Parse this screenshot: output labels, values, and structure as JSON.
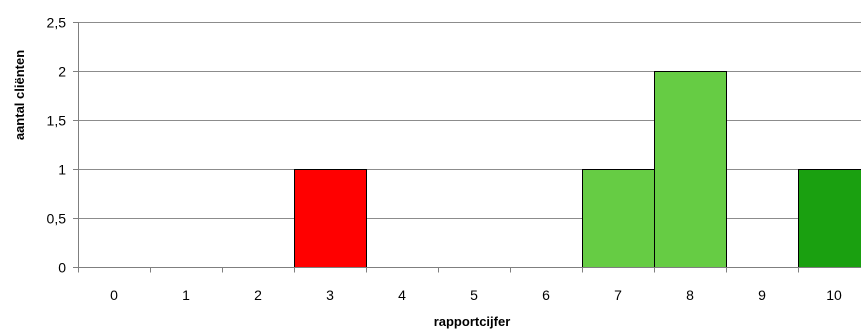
{
  "chart_data": {
    "type": "bar",
    "title": "",
    "xlabel": "rapportcijfer",
    "ylabel": "aantal cliënten",
    "categories": [
      "0",
      "1",
      "2",
      "3",
      "4",
      "5",
      "6",
      "7",
      "8",
      "9",
      "10"
    ],
    "values": [
      0,
      0,
      0,
      1,
      0,
      0,
      0,
      1,
      2,
      0,
      1
    ],
    "bar_colors": [
      "#ff0000",
      "#ff0000",
      "#ff0000",
      "#ff0000",
      "#ff0000",
      "#ff0000",
      "#66cc44",
      "#66cc44",
      "#66cc44",
      "#1aa010",
      "#1aa010"
    ],
    "ylim": [
      0,
      2.5
    ],
    "yticks": [
      0,
      0.5,
      1,
      1.5,
      2,
      2.5
    ],
    "ytick_labels": [
      "0",
      "0,5",
      "1",
      "1,5",
      "2",
      "2,5"
    ],
    "grid": true,
    "legend": "none"
  }
}
